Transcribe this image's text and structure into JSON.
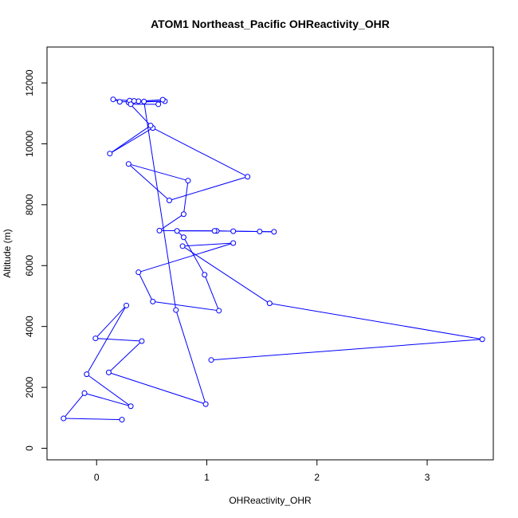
{
  "chart_data": {
    "type": "line",
    "title": "ATOM1 Northeast_Pacific OHReactivity_OHR",
    "xlabel": "OHReactivity_OHR",
    "ylabel": "Altitude (m)",
    "xlim": [
      -0.45,
      3.6
    ],
    "ylim": [
      -380,
      13180
    ],
    "x_ticks": [
      0,
      1,
      2,
      3
    ],
    "y_ticks": [
      0,
      2000,
      4000,
      6000,
      8000,
      10000,
      12000
    ],
    "series_color": "#0000ff",
    "series": [
      {
        "name": "OHReactivity_OHR",
        "x": [
          1.04,
          3.5,
          1.57,
          0.78,
          1.24,
          0.38,
          0.51,
          1.11,
          0.98,
          0.79,
          0.73,
          1.09,
          1.24,
          1.61,
          1.48,
          1.07,
          0.57,
          0.79,
          0.83,
          0.29,
          0.66,
          1.37,
          0.51,
          0.12,
          0.49,
          0.29,
          0.62,
          0.21,
          0.15,
          0.3,
          0.38,
          0.6,
          0.56,
          0.31,
          0.34,
          0.43,
          0.72,
          0.99,
          0.11,
          0.41,
          -0.01,
          0.27,
          -0.09,
          0.31,
          -0.11,
          -0.3,
          0.23
        ],
        "y": [
          2900,
          3580,
          4760,
          6640,
          6740,
          5780,
          4820,
          4520,
          5700,
          6930,
          7140,
          7140,
          7130,
          7110,
          7120,
          7140,
          7150,
          7690,
          8790,
          9340,
          8140,
          8920,
          10520,
          9680,
          10600,
          11360,
          11400,
          11380,
          11460,
          11420,
          11400,
          11450,
          11300,
          11300,
          11410,
          11390,
          4540,
          1450,
          2490,
          3520,
          3610,
          4690,
          2430,
          1380,
          1810,
          980,
          940
        ]
      }
    ]
  }
}
